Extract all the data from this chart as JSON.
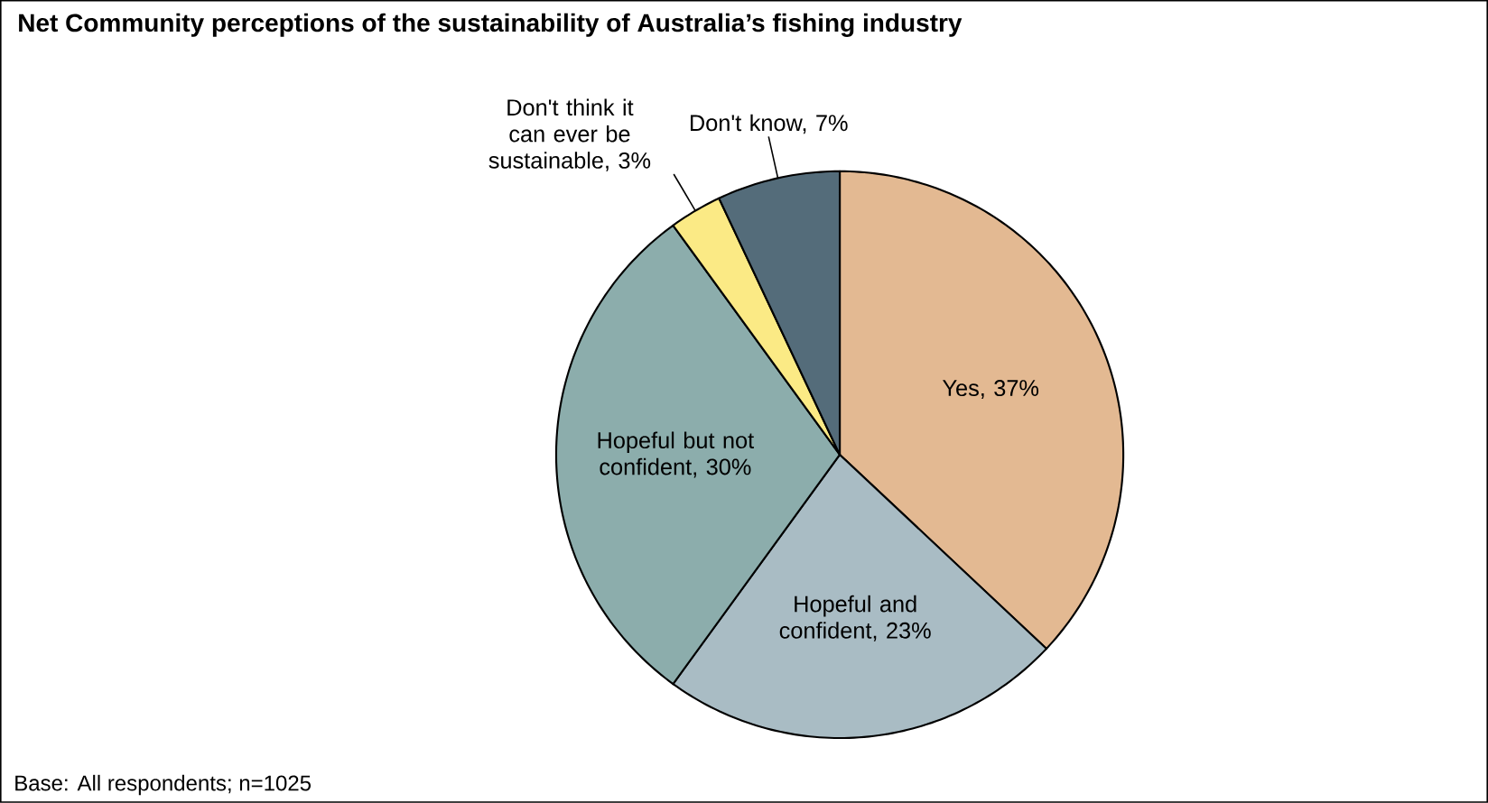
{
  "chart_data": {
    "type": "pie",
    "title": "Net Community perceptions of the sustainability of Australia’s fishing industry",
    "annotations": [
      "Base: All respondents; n=1025"
    ],
    "categories": [
      "Yes, 37%",
      "Hopeful and confident, 23%",
      "Hopeful but not confident, 30%",
      "Don't think it can ever be sustainable, 3%",
      "Don't know, 7%"
    ],
    "values": [
      37,
      23,
      30,
      3,
      7
    ],
    "colors": [
      "#e3b992",
      "#a9bcc4",
      "#8cadac",
      "#fbea85",
      "#546c7a"
    ]
  }
}
